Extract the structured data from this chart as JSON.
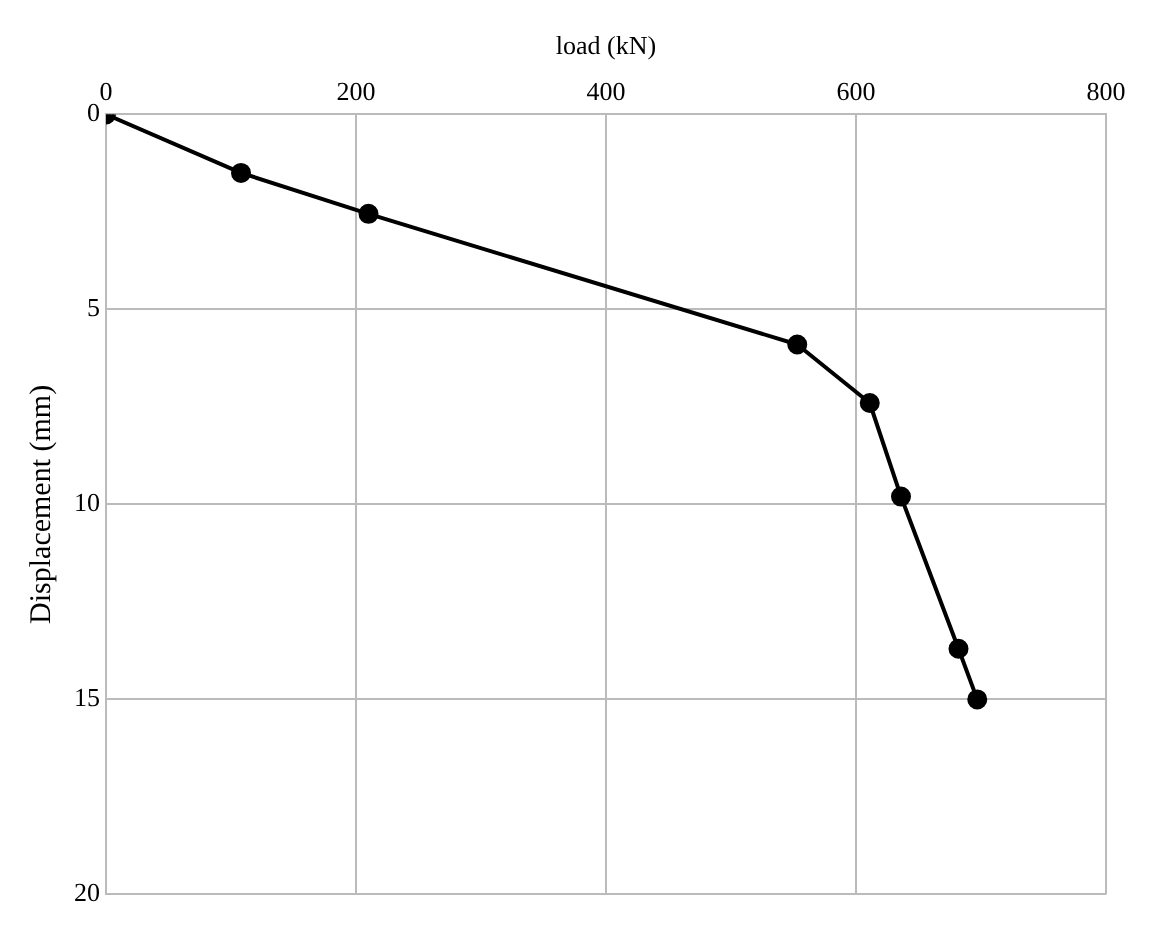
{
  "chart_data": {
    "type": "line",
    "xlabel": "load (kN)",
    "ylabel": "Displacement (mm)",
    "xlim": [
      0,
      800
    ],
    "xticks": [
      0,
      200,
      400,
      600,
      800
    ],
    "ylim": [
      20,
      0
    ],
    "yticks": [
      0,
      5,
      10,
      15,
      20
    ],
    "grid": true,
    "marker": "circle",
    "line_style": "solid",
    "legend": false,
    "series": [
      {
        "color": "#000000",
        "x": [
          0,
          108,
          210,
          553,
          611,
          636,
          682,
          697
        ],
        "values": [
          0,
          1.5,
          2.55,
          5.9,
          7.4,
          9.8,
          13.7,
          15.0
        ]
      }
    ]
  }
}
